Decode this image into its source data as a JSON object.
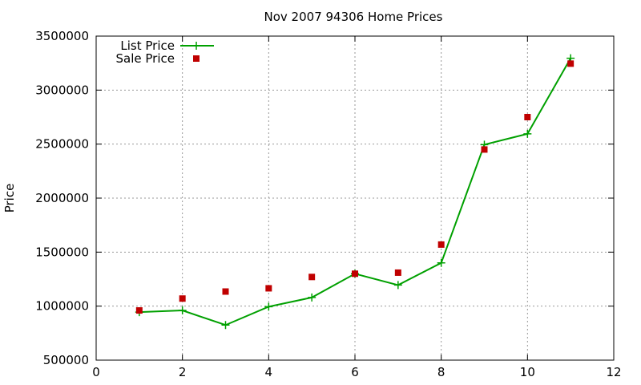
{
  "chart_data": {
    "type": "line",
    "title": "Nov 2007 94306 Home Prices",
    "xlabel": "",
    "ylabel": "Price",
    "xlim": [
      0,
      12
    ],
    "ylim": [
      500000,
      3500000
    ],
    "xticks": [
      0,
      2,
      4,
      6,
      8,
      10,
      12
    ],
    "yticks": [
      500000,
      1000000,
      1500000,
      2000000,
      2500000,
      3000000,
      3500000
    ],
    "xtick_labels": [
      "0",
      "2",
      "4",
      "6",
      "8",
      "10",
      "12"
    ],
    "ytick_labels": [
      "500000",
      "1000000",
      "1500000",
      "2000000",
      "2500000",
      "3000000",
      "3500000"
    ],
    "grid": true,
    "legend_position": "top-left",
    "series": [
      {
        "name": "List Price",
        "style": "line+cross",
        "color": "#00a000",
        "x": [
          1,
          2,
          3,
          4,
          5,
          6,
          7,
          8,
          9,
          10,
          11
        ],
        "values": [
          945000,
          960000,
          825000,
          995000,
          1080000,
          1300000,
          1195000,
          1400000,
          2495000,
          2595000,
          3295000
        ]
      },
      {
        "name": "Sale Price",
        "style": "square",
        "color": "#c00000",
        "x": [
          1,
          2,
          3,
          4,
          5,
          6,
          7,
          8,
          9,
          10,
          11
        ],
        "values": [
          960000,
          1070000,
          1135000,
          1165000,
          1270000,
          1300000,
          1310000,
          1570000,
          2450000,
          2750000,
          3245000
        ]
      }
    ]
  }
}
